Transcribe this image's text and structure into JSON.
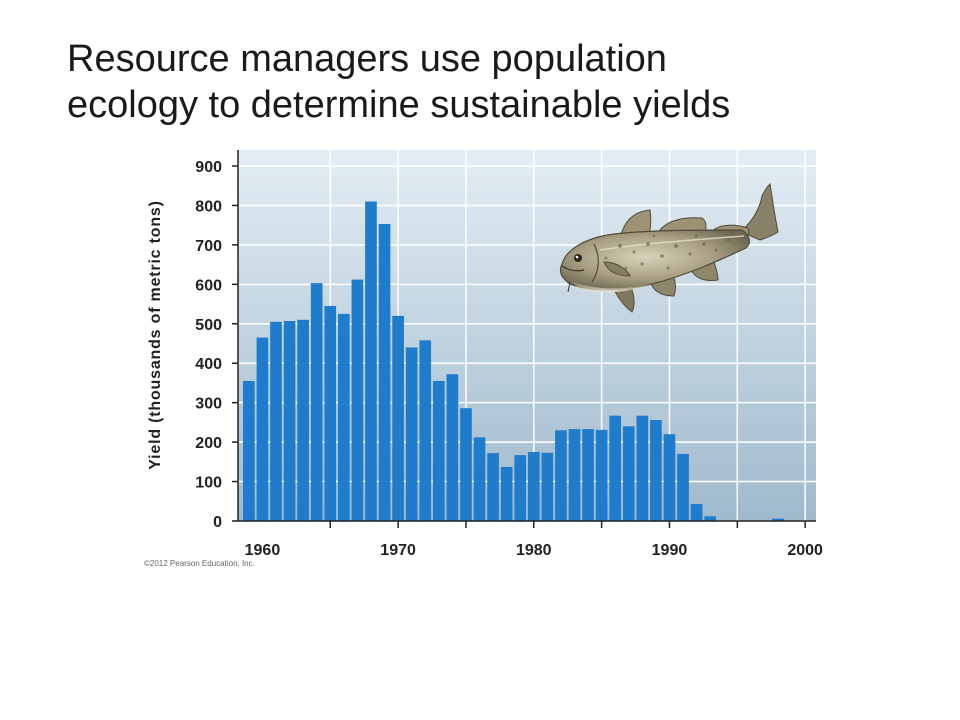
{
  "slide": {
    "title_line1": "Resource managers use population",
    "title_line2": "ecology to determine sustainable yields"
  },
  "copyright": "©2012 Pearson Education, Inc.",
  "colors": {
    "bar": "#1f7bcb",
    "bg_top": "#e3edf4",
    "bg_bottom": "#9fb9cc",
    "grid": "#ffffff",
    "axis": "#222222"
  },
  "fish_icon": "cod-illustration",
  "chart_data": {
    "type": "bar",
    "title": "",
    "xlabel": "",
    "ylabel": "Yield (thousands of metric tons)",
    "ylim": [
      0,
      900
    ],
    "yticks": [
      0,
      100,
      200,
      300,
      400,
      500,
      600,
      700,
      800,
      900
    ],
    "xlim": [
      1958.2,
      2000.8
    ],
    "xticks": [
      1960,
      1970,
      1980,
      1990,
      2000
    ],
    "grid": true,
    "x": [
      1959,
      1960,
      1961,
      1962,
      1963,
      1964,
      1965,
      1966,
      1967,
      1968,
      1969,
      1970,
      1971,
      1972,
      1973,
      1974,
      1975,
      1976,
      1977,
      1978,
      1979,
      1980,
      1981,
      1982,
      1983,
      1984,
      1985,
      1986,
      1987,
      1988,
      1989,
      1990,
      1991,
      1992,
      1993,
      1994,
      1995,
      1996,
      1997,
      1998
    ],
    "values": [
      355,
      465,
      505,
      507,
      510,
      603,
      545,
      525,
      612,
      810,
      753,
      520,
      440,
      458,
      355,
      372,
      286,
      212,
      172,
      137,
      167,
      175,
      173,
      230,
      233,
      233,
      231,
      267,
      240,
      267,
      256,
      220,
      170,
      43,
      12,
      0,
      0,
      0,
      0,
      6
    ]
  }
}
